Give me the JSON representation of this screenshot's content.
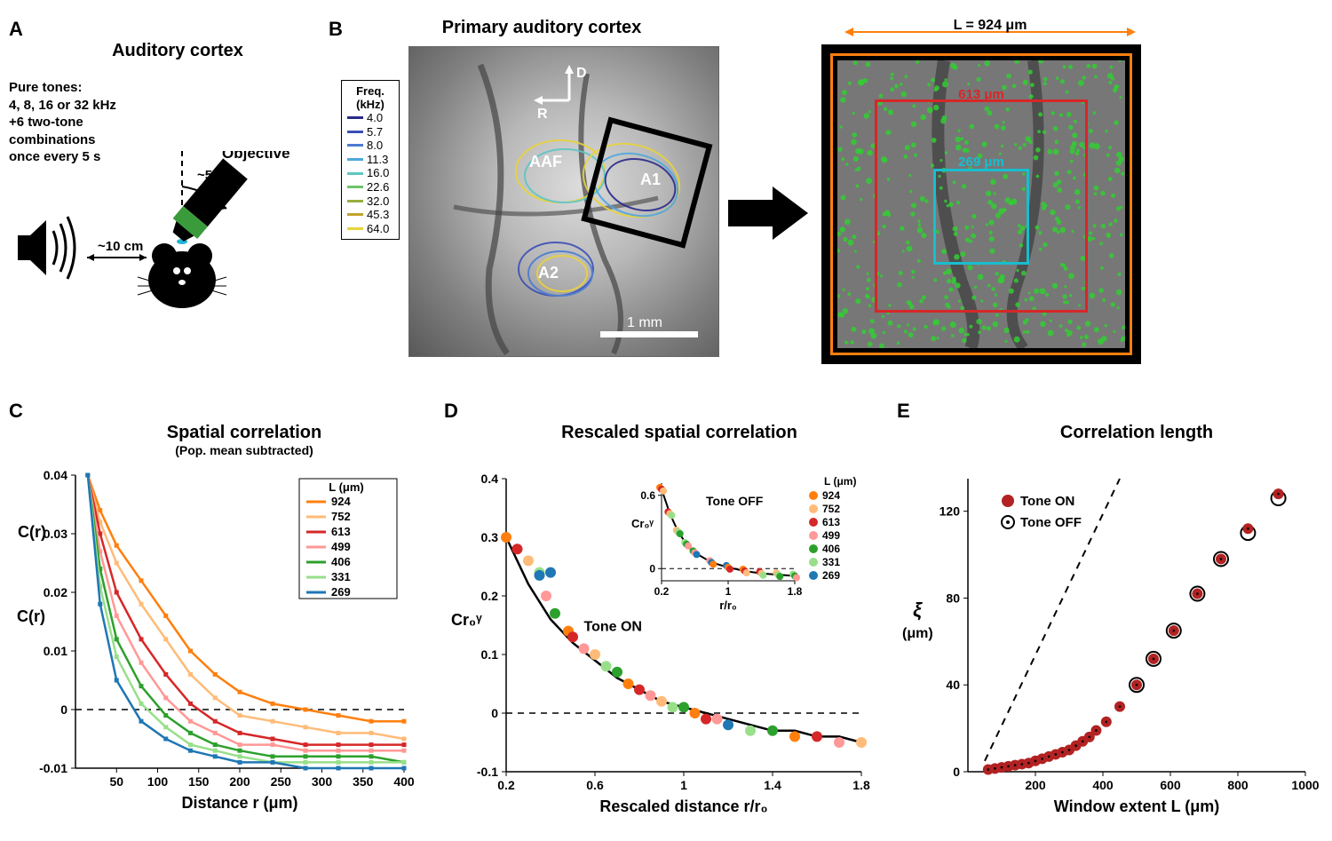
{
  "panelA": {
    "label": "A",
    "title": "Auditory cortex",
    "text_lines": [
      "Pure tones:",
      "4, 8, 16 or 32 kHz",
      "+6 two-tone",
      "combinations",
      "once every 5 s"
    ],
    "distance": "~10 cm",
    "angle": "~50°",
    "objective": "Objective"
  },
  "panelB": {
    "label": "B",
    "title": "Primary auditory cortex",
    "freq_title": "Freq.\n(kHz)",
    "freqs": [
      "4.0",
      "5.7",
      "8.0",
      "11.3",
      "16.0",
      "22.6",
      "32.0",
      "45.3",
      "64.0"
    ],
    "freq_colors": [
      "#2a2a8a",
      "#3b4fb5",
      "#4a7bd0",
      "#4ea7dd",
      "#5cc6c4",
      "#70c26d",
      "#98ae3f",
      "#c0a32c",
      "#e8d33c"
    ],
    "areas": [
      "AAF",
      "A1",
      "A2"
    ],
    "axes": {
      "D": "D",
      "R": "R"
    },
    "scale": "1 mm",
    "L_label": "L = 924 μm",
    "boxes": [
      {
        "size": "613 μm",
        "color": "#d62728"
      },
      {
        "size": "269 μm",
        "color": "#17becf"
      }
    ]
  },
  "panelC": {
    "label": "C",
    "title": "Spatial correlation",
    "subtitle": "(Pop. mean subtracted)",
    "ylabel": "C(r)",
    "xlabel": "Distance r (μm)",
    "xlim": [
      0,
      400
    ],
    "ylim": [
      -0.01,
      0.04
    ],
    "xticks": [
      50,
      100,
      150,
      200,
      250,
      300,
      350,
      400
    ],
    "yticks": [
      -0.01,
      0,
      0.01,
      0.02,
      0.03,
      0.04
    ],
    "legend_title": "L (μm)",
    "series": [
      {
        "L": "924",
        "color": "#ff7f0e",
        "y": [
          0.04,
          0.034,
          0.028,
          0.022,
          0.016,
          0.01,
          0.006,
          0.003,
          0.001,
          0.0,
          -0.001,
          -0.002,
          -0.002
        ]
      },
      {
        "L": "752",
        "color": "#ffbb78",
        "y": [
          0.04,
          0.032,
          0.025,
          0.018,
          0.012,
          0.006,
          0.002,
          -0.001,
          -0.002,
          -0.003,
          -0.004,
          -0.004,
          -0.005
        ]
      },
      {
        "L": "613",
        "color": "#d62728",
        "y": [
          0.04,
          0.03,
          0.02,
          0.012,
          0.006,
          0.001,
          -0.002,
          -0.004,
          -0.005,
          -0.006,
          -0.006,
          -0.006,
          -0.006
        ]
      },
      {
        "L": "499",
        "color": "#ff9896",
        "y": [
          0.04,
          0.027,
          0.016,
          0.008,
          0.002,
          -0.002,
          -0.004,
          -0.006,
          -0.006,
          -0.007,
          -0.007,
          -0.007,
          -0.007
        ]
      },
      {
        "L": "406",
        "color": "#2ca02c",
        "y": [
          0.04,
          0.024,
          0.012,
          0.004,
          -0.001,
          -0.004,
          -0.006,
          -0.007,
          -0.008,
          -0.008,
          -0.008,
          -0.008,
          -0.009
        ]
      },
      {
        "L": "331",
        "color": "#98df8a",
        "y": [
          0.04,
          0.021,
          0.009,
          0.001,
          -0.003,
          -0.006,
          -0.007,
          -0.008,
          -0.009,
          -0.009,
          -0.009,
          -0.009,
          -0.009
        ]
      },
      {
        "L": "269",
        "color": "#1f77b4",
        "y": [
          0.04,
          0.018,
          0.005,
          -0.002,
          -0.005,
          -0.007,
          -0.008,
          -0.009,
          -0.009,
          -0.01,
          -0.01,
          -0.01,
          -0.01
        ]
      }
    ],
    "x_points": [
      15,
      30,
      50,
      80,
      110,
      140,
      170,
      200,
      240,
      280,
      320,
      360,
      400
    ]
  },
  "panelD": {
    "label": "D",
    "title": "Rescaled spatial correlation",
    "ylabel": "Cr₀ᵞ",
    "xlabel": "Rescaled distance r/r₀",
    "xlim": [
      0.2,
      1.8
    ],
    "ylim": [
      -0.1,
      0.4
    ],
    "xticks": [
      0.2,
      0.6,
      1.0,
      1.4,
      1.8
    ],
    "yticks": [
      -0.1,
      0,
      0.1,
      0.2,
      0.3,
      0.4
    ],
    "tone_on_label": "Tone ON",
    "inset": {
      "title": "Tone OFF",
      "ylabel": "Cr₀ᵞ",
      "xlabel": "r/r₀",
      "xlim": [
        0.2,
        1.8
      ],
      "ylim": [
        -0.1,
        0.7
      ],
      "xticks": [
        0.2,
        1.0,
        1.8
      ],
      "yticks": [
        0,
        0.6
      ]
    },
    "legend_title": "L (μm)",
    "legend_items": [
      {
        "L": "924",
        "color": "#ff7f0e"
      },
      {
        "L": "752",
        "color": "#ffbb78"
      },
      {
        "L": "613",
        "color": "#d62728"
      },
      {
        "L": "499",
        "color": "#ff9896"
      },
      {
        "L": "406",
        "color": "#2ca02c"
      },
      {
        "L": "331",
        "color": "#98df8a"
      },
      {
        "L": "269",
        "color": "#1f77b4"
      }
    ],
    "curve_x": [
      0.2,
      0.3,
      0.4,
      0.5,
      0.6,
      0.7,
      0.8,
      0.9,
      1.0,
      1.1,
      1.2,
      1.3,
      1.4,
      1.5,
      1.6,
      1.7,
      1.8
    ],
    "curve_y": [
      0.3,
      0.22,
      0.16,
      0.12,
      0.09,
      0.06,
      0.04,
      0.02,
      0.01,
      0.0,
      -0.01,
      -0.02,
      -0.03,
      -0.03,
      -0.04,
      -0.04,
      -0.05
    ],
    "scatter_x": [
      0.2,
      0.25,
      0.3,
      0.35,
      0.38,
      0.42,
      0.48,
      0.5,
      0.55,
      0.6,
      0.65,
      0.7,
      0.75,
      0.8,
      0.85,
      0.9,
      0.95,
      1.0,
      1.05,
      1.1,
      1.15,
      1.2,
      1.3,
      1.4,
      1.5,
      1.6,
      1.7,
      1.8,
      0.35,
      0.4
    ],
    "scatter_y": [
      0.3,
      0.28,
      0.26,
      0.24,
      0.2,
      0.17,
      0.14,
      0.13,
      0.11,
      0.1,
      0.08,
      0.07,
      0.05,
      0.04,
      0.03,
      0.02,
      0.01,
      0.01,
      0.0,
      -0.01,
      -0.01,
      -0.02,
      -0.03,
      -0.03,
      -0.04,
      -0.04,
      -0.05,
      -0.05,
      0.235,
      0.24
    ],
    "scatter_colors": [
      "#ff7f0e",
      "#d62728",
      "#ffbb78",
      "#98df8a",
      "#ff9896",
      "#2ca02c",
      "#ff7f0e",
      "#d62728",
      "#ff9896",
      "#ffbb78",
      "#98df8a",
      "#2ca02c",
      "#ff7f0e",
      "#d62728",
      "#ff9896",
      "#ffbb78",
      "#98df8a",
      "#2ca02c",
      "#ff7f0e",
      "#d62728",
      "#ff9896",
      "#1f77b4",
      "#98df8a",
      "#2ca02c",
      "#ff7f0e",
      "#d62728",
      "#ff9896",
      "#ffbb78",
      "#1f77b4",
      "#1f77b4"
    ],
    "inset_curve_x": [
      0.2,
      0.3,
      0.4,
      0.5,
      0.6,
      0.8,
      1.0,
      1.2,
      1.4,
      1.6,
      1.8
    ],
    "inset_curve_y": [
      0.65,
      0.45,
      0.3,
      0.2,
      0.13,
      0.05,
      0.01,
      -0.02,
      -0.04,
      -0.05,
      -0.06
    ]
  },
  "panelE": {
    "label": "E",
    "title": "Correlation length",
    "ylabel": "ξ\n(μm)",
    "xlabel": "Window extent L (μm)",
    "xlim": [
      0,
      1000
    ],
    "ylim": [
      0,
      135
    ],
    "xticks": [
      200,
      400,
      600,
      800,
      1000
    ],
    "yticks": [
      0,
      40,
      80,
      120
    ],
    "legend": [
      {
        "label": "Tone ON",
        "type": "filled"
      },
      {
        "label": "Tone OFF",
        "type": "hollow"
      }
    ],
    "dash_line": [
      [
        50,
        5
      ],
      [
        450,
        135
      ]
    ],
    "tone_on": [
      [
        60,
        1
      ],
      [
        80,
        1.5
      ],
      [
        100,
        2
      ],
      [
        120,
        2.5
      ],
      [
        140,
        3
      ],
      [
        160,
        3.5
      ],
      [
        180,
        4
      ],
      [
        200,
        5
      ],
      [
        220,
        6
      ],
      [
        240,
        7
      ],
      [
        260,
        8
      ],
      [
        280,
        9
      ],
      [
        300,
        10
      ],
      [
        320,
        12
      ],
      [
        340,
        14
      ],
      [
        360,
        16
      ],
      [
        380,
        19
      ],
      [
        410,
        23
      ],
      [
        450,
        30
      ],
      [
        500,
        40
      ],
      [
        550,
        52
      ],
      [
        610,
        65
      ],
      [
        680,
        82
      ],
      [
        750,
        98
      ],
      [
        830,
        112
      ],
      [
        920,
        128
      ]
    ],
    "tone_off": [
      [
        500,
        40
      ],
      [
        550,
        52
      ],
      [
        610,
        65
      ],
      [
        680,
        82
      ],
      [
        750,
        98
      ],
      [
        830,
        110
      ],
      [
        920,
        126
      ]
    ],
    "marker_color": "#b22222"
  }
}
